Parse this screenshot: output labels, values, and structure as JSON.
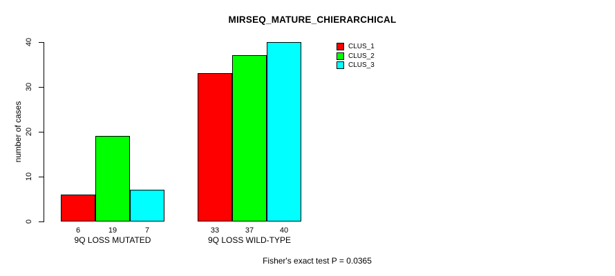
{
  "chart_data": {
    "type": "bar",
    "title": "MIRSEQ_MATURE_CHIERARCHICAL",
    "xlabel": "",
    "ylabel": "number of cases",
    "ylim": [
      0,
      40
    ],
    "yticks": [
      0,
      10,
      20,
      30,
      40
    ],
    "grid": false,
    "categories": [
      "9Q LOSS MUTATED",
      "9Q LOSS WILD-TYPE"
    ],
    "series": [
      {
        "name": "CLUS_1",
        "color": "#ff0000",
        "values": [
          6,
          33
        ]
      },
      {
        "name": "CLUS_2",
        "color": "#00ff00",
        "values": [
          19,
          37
        ]
      },
      {
        "name": "CLUS_3",
        "color": "#00ffff",
        "values": [
          7,
          40
        ]
      }
    ],
    "bar_value_labels": [
      [
        "6",
        "19",
        "7"
      ],
      [
        "33",
        "37",
        "40"
      ]
    ],
    "legend_position": "top-right",
    "annotation": "Fisher's exact test P = 0.0365"
  },
  "colors": {
    "background": "#ffffff",
    "text": "#000000",
    "axis": "#000000"
  }
}
